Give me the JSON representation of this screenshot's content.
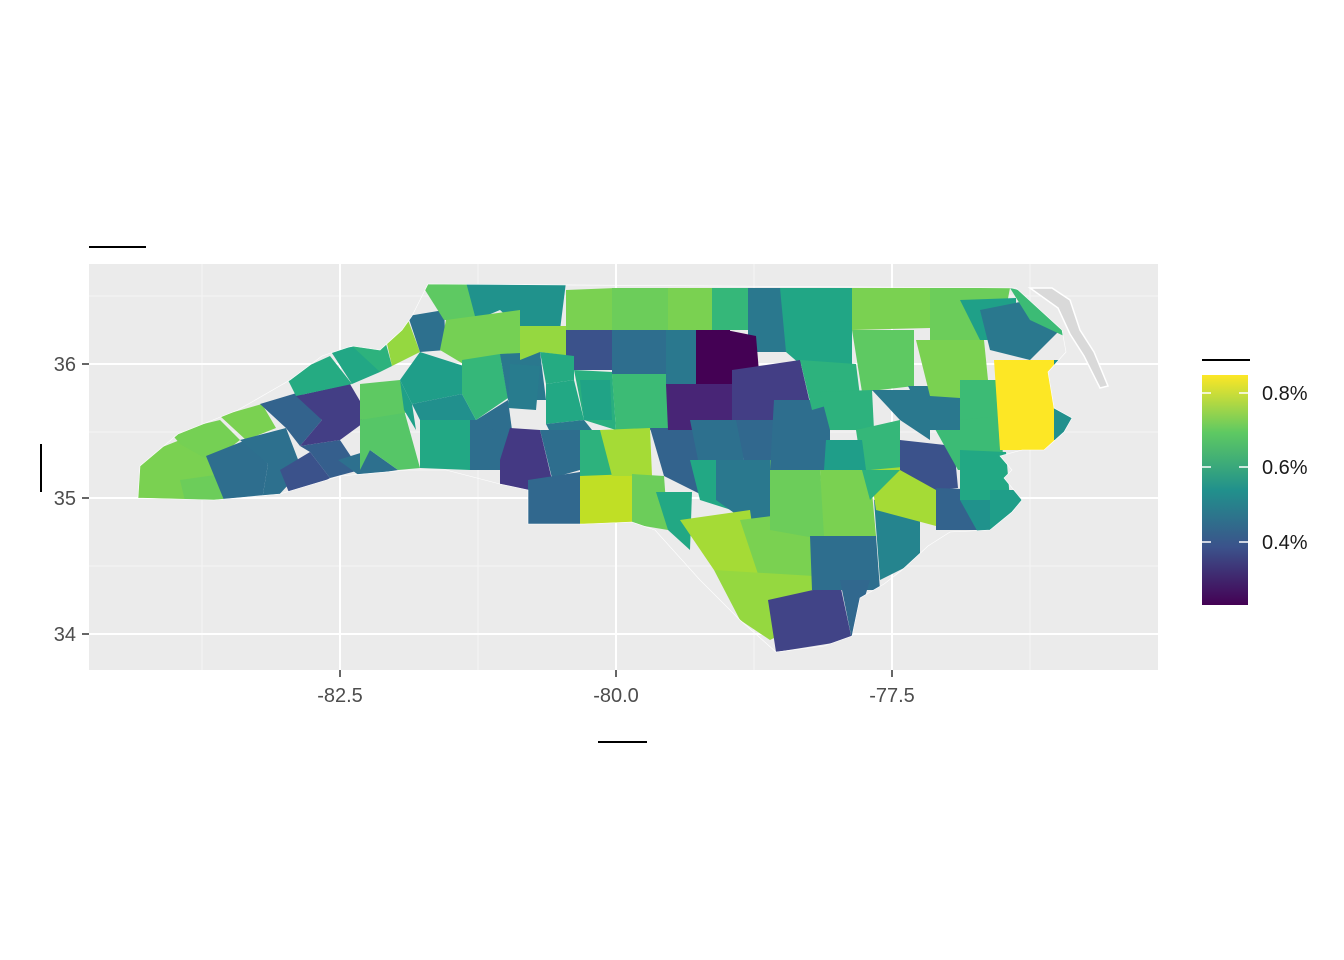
{
  "map": {
    "title": "",
    "axes": {
      "x": {
        "label": "",
        "ticks": [
          "-82.5",
          "-80.0",
          "-77.5"
        ],
        "tick_values": [
          -82.5,
          -80.0,
          -77.5
        ],
        "range": [
          -84.6,
          -75.0
        ]
      },
      "y": {
        "label": "",
        "ticks": [
          "34",
          "35",
          "36"
        ],
        "tick_values": [
          34,
          35,
          36
        ],
        "range": [
          33.75,
          36.75
        ]
      }
    },
    "grid": true,
    "panel_background": "#ebebeb",
    "gridline_color": "#ffffff",
    "missing_color": "#d9d9d9",
    "region": "North Carolina counties",
    "legend": {
      "title": "",
      "placement": "right",
      "colormap": "viridis",
      "min": 0.2,
      "max": 0.85,
      "ticks": [
        "0.8%",
        "0.6%",
        "0.4%"
      ],
      "tick_values": [
        0.8,
        0.6,
        0.4
      ],
      "colors": [
        "#440154",
        "#3b528b",
        "#21918c",
        "#5ec962",
        "#fde725"
      ]
    }
  }
}
